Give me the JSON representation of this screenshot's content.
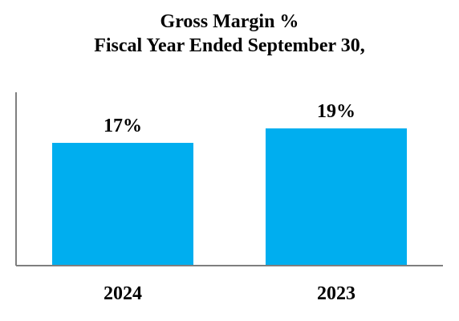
{
  "chart_data": {
    "type": "bar",
    "title": [
      "Gross Margin %",
      "Fiscal Year Ended September 30,"
    ],
    "categories": [
      "2024",
      "2023"
    ],
    "values": [
      17,
      19
    ],
    "value_suffix": "%",
    "xlabel": "",
    "ylabel": "",
    "ylim": [
      0,
      24
    ],
    "grid": false,
    "legend": "none",
    "bar_color": "#00AEEF",
    "axis_color": "#7F7F7F"
  }
}
